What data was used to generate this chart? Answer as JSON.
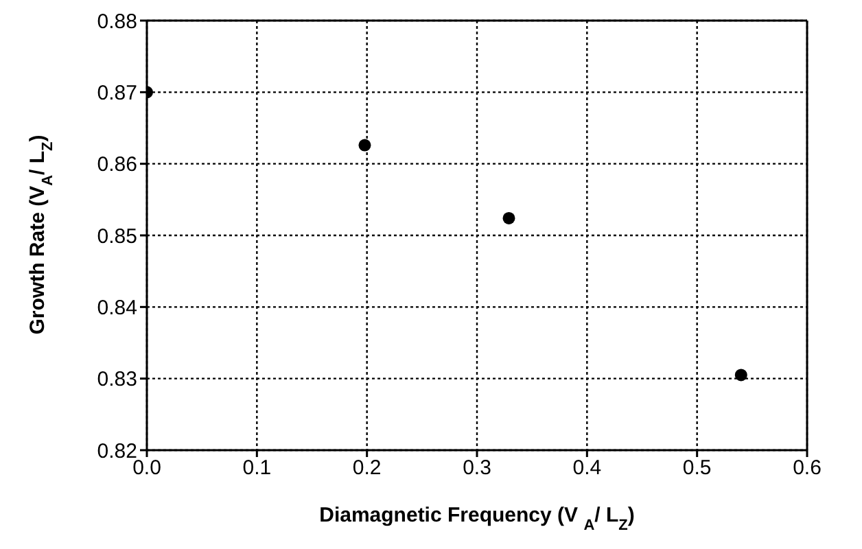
{
  "chart_data": {
    "type": "scatter",
    "xlabel": "Diamagnetic Frequency (V $_{A}$/ L$_{Z}$)",
    "ylabel": "Growth Rate (V$_{A}$/ L$_{Z}$)",
    "x": [
      0.0,
      0.198,
      0.329,
      0.54
    ],
    "series": [
      {
        "color": "#000000",
        "values": [
          0.87,
          0.8626,
          0.8524,
          0.8305
        ]
      }
    ],
    "xlim": [
      0,
      0.6
    ],
    "xticks": [
      {
        "value": 0,
        "label": "0.0"
      },
      0.1,
      0.2,
      0.3,
      0.4,
      0.5,
      0.6
    ],
    "ylim": [
      0.82,
      0.88
    ],
    "yticks": [
      0.82,
      0.83,
      0.84,
      0.85,
      0.86,
      0.87,
      0.88
    ],
    "grid": true,
    "marker": "circle"
  }
}
